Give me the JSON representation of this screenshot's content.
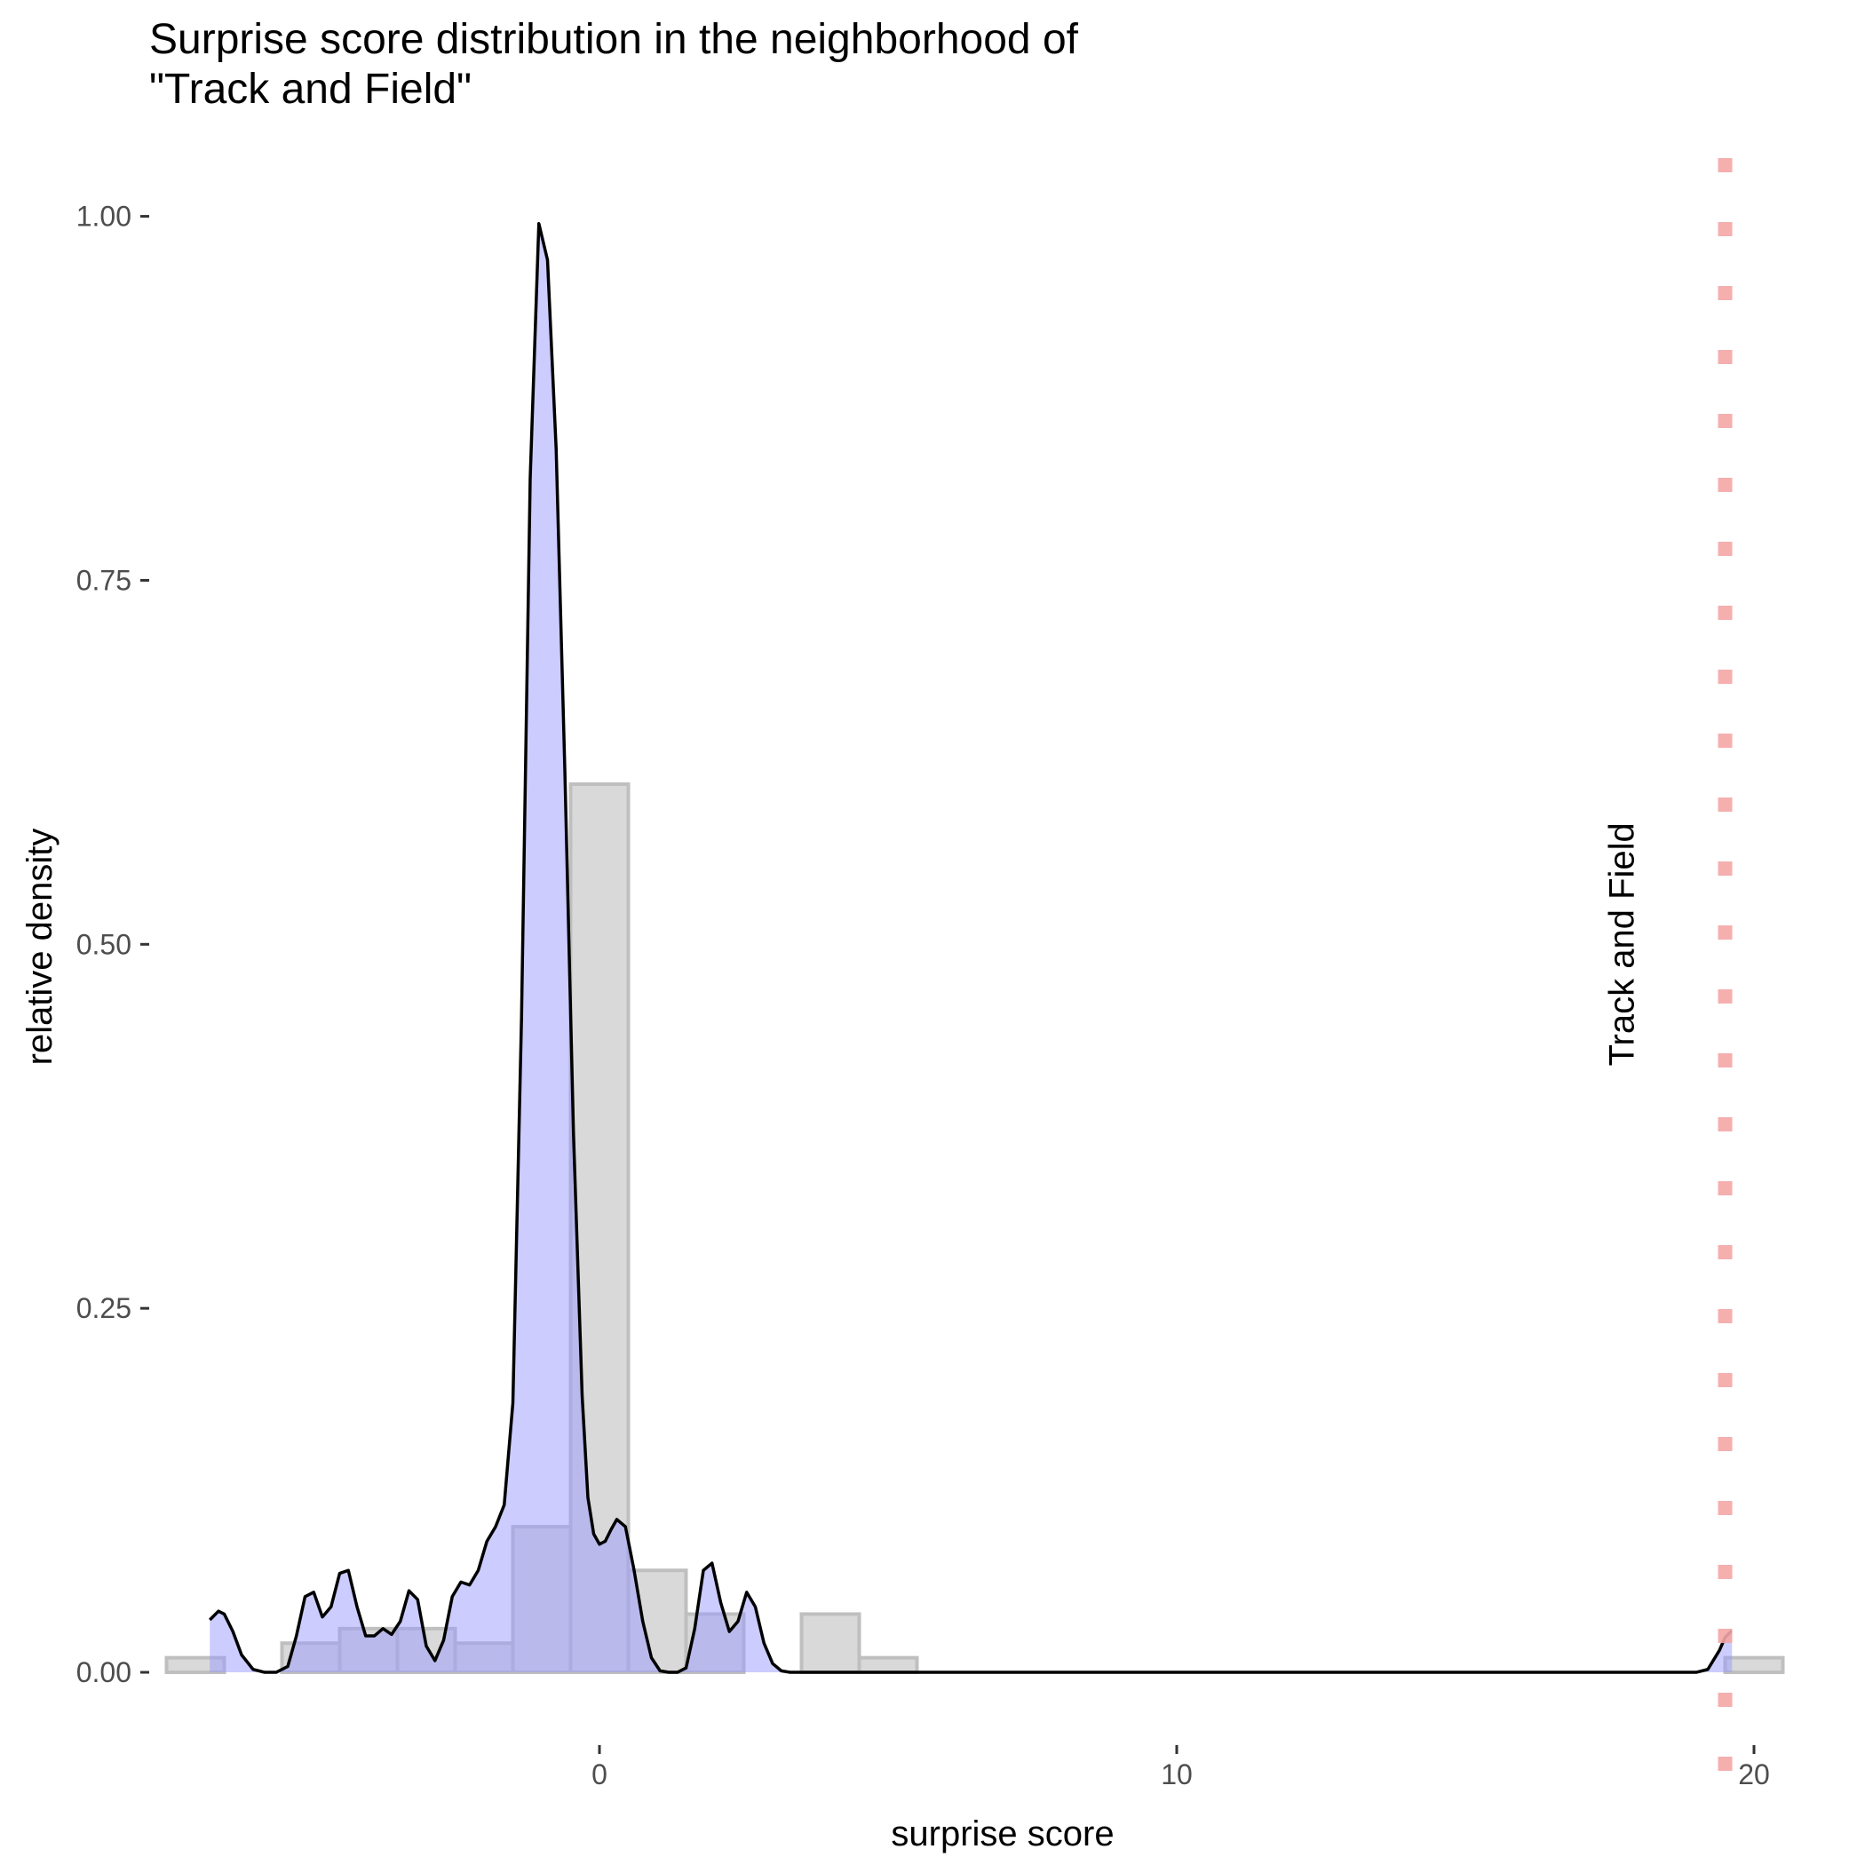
{
  "chart_data": {
    "type": "area",
    "title_line1": "Surprise score distribution in the neighborhood of",
    "title_line2": "\"Track and Field\"",
    "xlabel": "surprise score",
    "ylabel": "relative density",
    "xlim": [
      -7.8,
      21.0
    ],
    "ylim": [
      -0.05,
      1.04
    ],
    "x_ticks": [
      0,
      10,
      20
    ],
    "x_tick_labels": [
      "0",
      "10",
      "20"
    ],
    "y_ticks": [
      0.0,
      0.25,
      0.5,
      0.75,
      1.0
    ],
    "y_tick_labels": [
      "0.00",
      "0.25",
      "0.50",
      "0.75",
      "1.00"
    ],
    "grid": false,
    "histogram": {
      "bin_width": 1.0,
      "bins": [
        {
          "x0": -7.5,
          "x1": -6.5,
          "value": 0.01
        },
        {
          "x0": -6.5,
          "x1": -5.5,
          "value": 0.0
        },
        {
          "x0": -5.5,
          "x1": -4.5,
          "value": 0.02
        },
        {
          "x0": -4.5,
          "x1": -3.5,
          "value": 0.03
        },
        {
          "x0": -3.5,
          "x1": -2.5,
          "value": 0.03
        },
        {
          "x0": -2.5,
          "x1": -1.5,
          "value": 0.02
        },
        {
          "x0": -1.5,
          "x1": -0.5,
          "value": 0.1
        },
        {
          "x0": -0.5,
          "x1": 0.5,
          "value": 0.61
        },
        {
          "x0": 0.5,
          "x1": 1.5,
          "value": 0.07
        },
        {
          "x0": 1.5,
          "x1": 2.5,
          "value": 0.04
        },
        {
          "x0": 3.5,
          "x1": 4.5,
          "value": 0.04
        },
        {
          "x0": 4.5,
          "x1": 5.5,
          "value": 0.01
        },
        {
          "x0": 19.5,
          "x1": 20.5,
          "value": 0.01
        }
      ],
      "fill": "#d9d9d9",
      "stroke": "#bfbfbf"
    },
    "density": {
      "x": [
        -6.75,
        -6.6,
        -6.5,
        -6.35,
        -6.2,
        -6.0,
        -5.8,
        -5.6,
        -5.4,
        -5.25,
        -5.1,
        -4.95,
        -4.8,
        -4.65,
        -4.5,
        -4.35,
        -4.2,
        -4.05,
        -3.9,
        -3.75,
        -3.6,
        -3.45,
        -3.3,
        -3.15,
        -3.0,
        -2.85,
        -2.7,
        -2.55,
        -2.4,
        -2.25,
        -2.1,
        -1.95,
        -1.8,
        -1.65,
        -1.5,
        -1.35,
        -1.2,
        -1.05,
        -0.9,
        -0.75,
        -0.6,
        -0.45,
        -0.3,
        -0.2,
        -0.1,
        0.0,
        0.1,
        0.2,
        0.3,
        0.45,
        0.6,
        0.75,
        0.9,
        1.05,
        1.2,
        1.35,
        1.5,
        1.65,
        1.8,
        1.95,
        2.1,
        2.25,
        2.4,
        2.55,
        2.7,
        2.85,
        3.0,
        3.15,
        3.3,
        3.45,
        3.6,
        3.75,
        3.9,
        4.05,
        4.2,
        4.35,
        4.5,
        4.65,
        4.8,
        4.95,
        5.1,
        5.3,
        5.6,
        6.0,
        7.0,
        10.0,
        15.0,
        18.5,
        19.0,
        19.2,
        19.4,
        19.5,
        19.6,
        19.62
      ],
      "y": [
        0.036,
        0.042,
        0.04,
        0.028,
        0.012,
        0.002,
        0.0,
        0.0,
        0.004,
        0.025,
        0.052,
        0.055,
        0.038,
        0.045,
        0.068,
        0.07,
        0.045,
        0.025,
        0.025,
        0.03,
        0.026,
        0.035,
        0.056,
        0.05,
        0.018,
        0.008,
        0.022,
        0.052,
        0.062,
        0.06,
        0.07,
        0.09,
        0.1,
        0.115,
        0.185,
        0.45,
        0.82,
        0.995,
        0.97,
        0.84,
        0.62,
        0.37,
        0.19,
        0.12,
        0.095,
        0.088,
        0.09,
        0.098,
        0.105,
        0.1,
        0.07,
        0.035,
        0.01,
        0.001,
        0.0,
        0.0,
        0.003,
        0.03,
        0.07,
        0.075,
        0.048,
        0.028,
        0.035,
        0.055,
        0.045,
        0.02,
        0.006,
        0.001,
        0.0,
        0.0,
        0.0,
        0.0,
        0.0,
        0.0,
        0.0,
        0.0,
        0.0,
        0.0,
        0.0,
        0.0,
        0.0,
        0.0,
        0.0,
        0.0,
        0.0,
        0.0,
        0.0,
        0.0,
        0.0,
        0.002,
        0.015,
        0.024,
        0.028,
        0.028
      ],
      "fill": "#9999ff",
      "fill_opacity": 0.5,
      "line_color": "#000000"
    },
    "reference_line": {
      "x": 19.5,
      "color": "#f4a6a6",
      "style": "dotted",
      "label": "Track and Field",
      "label_x": 17.7,
      "label_y": 0.5
    }
  }
}
